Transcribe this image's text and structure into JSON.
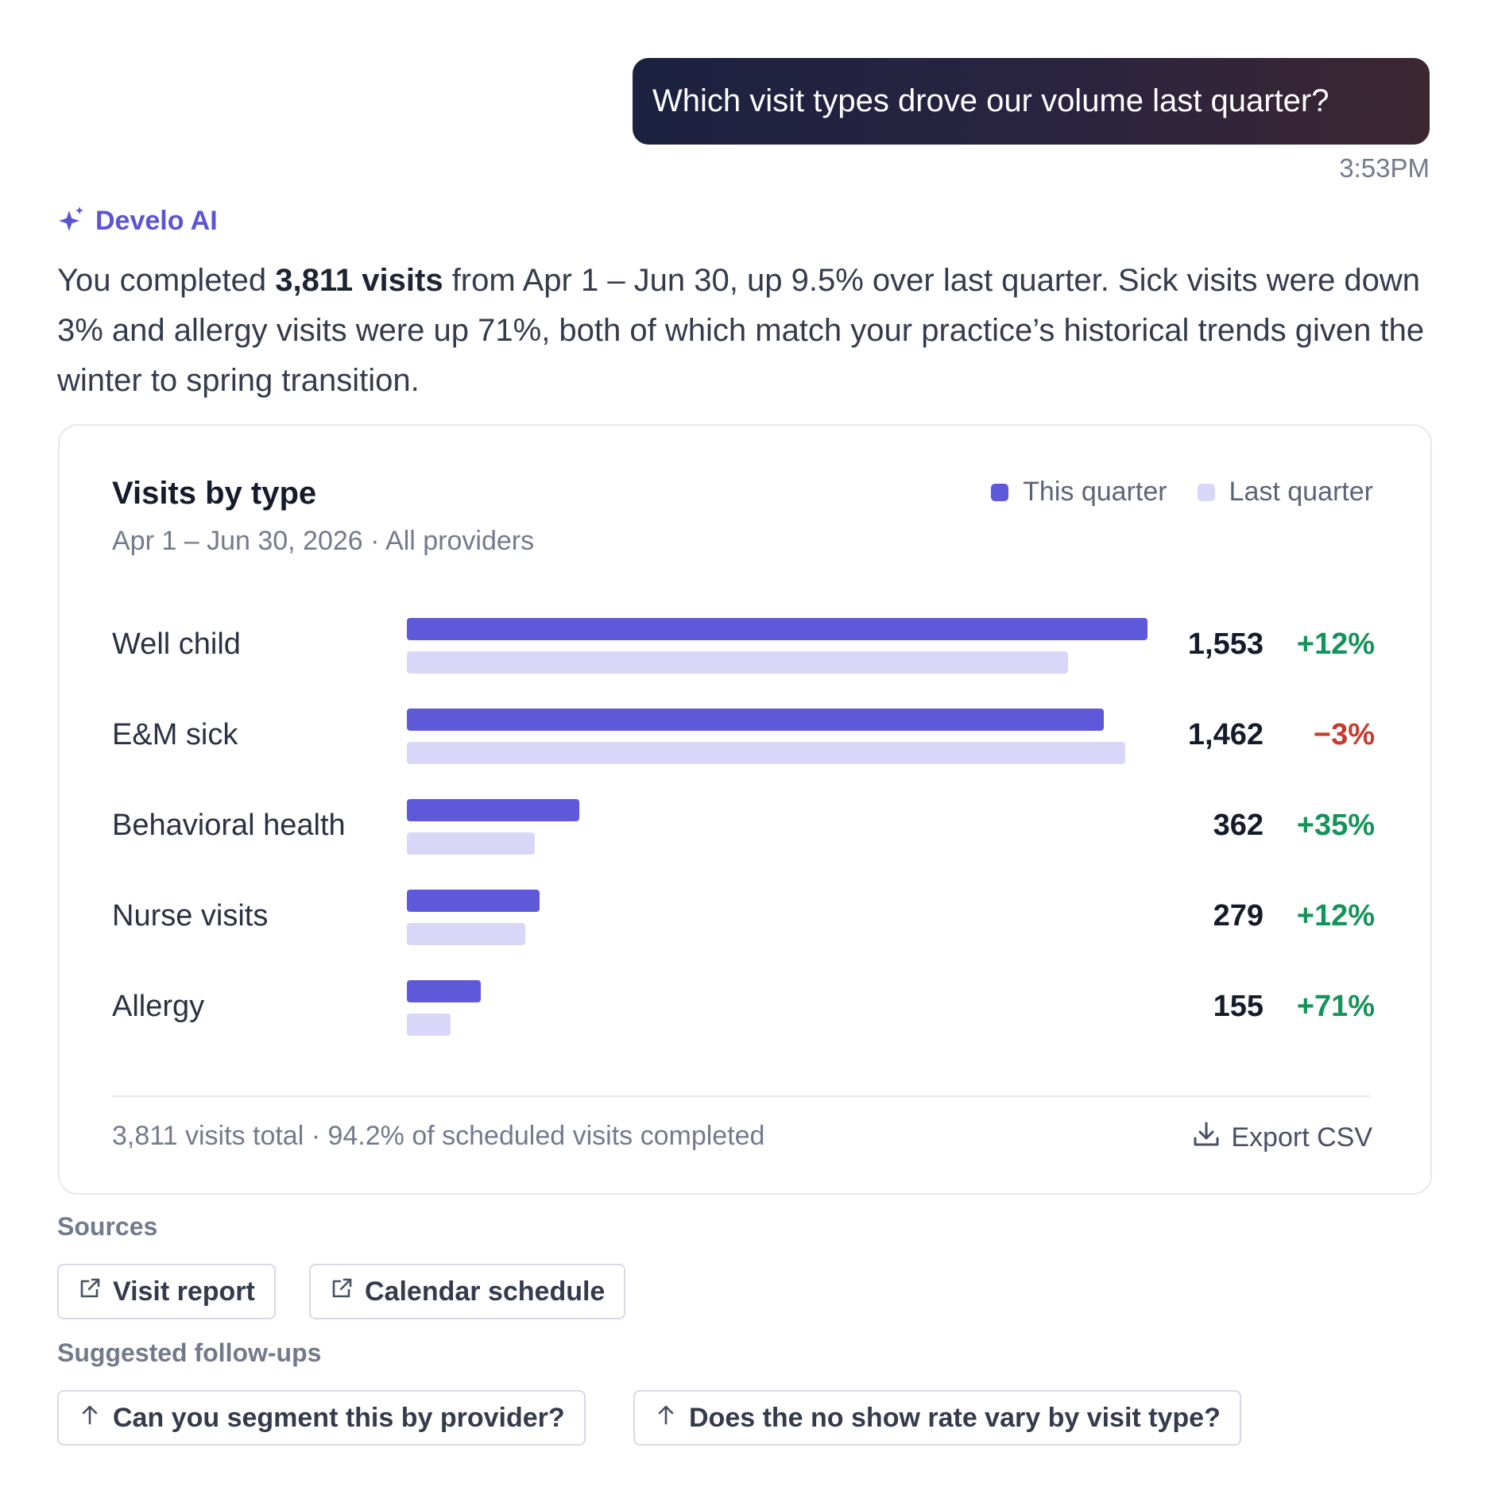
{
  "user_message": {
    "text": "Which visit types drove our volume last quarter?",
    "timestamp": "3:53PM"
  },
  "assistant": {
    "name": "Develo AI",
    "icon": "sparkle-icon",
    "answer": {
      "part1": "You completed ",
      "bold": "3,811 visits",
      "part2": " from Apr 1 – Jun 30, up 9.5% over last quarter. Sick visits were down 3% and allergy visits were up 71%, both of which match your practice’s historical trends given the winter to spring transition."
    }
  },
  "card": {
    "title": "Visits by type",
    "subtitle": "Apr 1 – Jun 30, 2026 · All providers",
    "legend": [
      {
        "label": "This quarter",
        "color": "#5e59d9"
      },
      {
        "label": "Last quarter",
        "color": "#d9d7f7"
      }
    ],
    "footer": "3,811 visits total · 94.2% of scheduled visits completed",
    "export_label": "Export CSV",
    "export_icon": "download-icon"
  },
  "chart_data": {
    "type": "bar",
    "orientation": "horizontal",
    "categories": [
      "Well child",
      "E&M sick",
      "Behavioral health",
      "Nurse visits",
      "Allergy"
    ],
    "series": [
      {
        "name": "This quarter",
        "values": [
          1553,
          1462,
          362,
          279,
          155
        ],
        "color": "#5e59d9"
      },
      {
        "name": "Last quarter",
        "values": [
          1387,
          1507,
          268,
          249,
          91
        ],
        "color": "#d9d7f7"
      }
    ],
    "value_labels": [
      "1,553",
      "1,462",
      "362",
      "279",
      "155"
    ],
    "change_labels": [
      "+12%",
      "−3%",
      "+35%",
      "+12%",
      "+71%"
    ],
    "change_positive": [
      true,
      false,
      true,
      true,
      true
    ],
    "colors": {
      "positive": "#16935a",
      "negative": "#c63b2e"
    },
    "xlim": [
      0,
      1553
    ],
    "grid": false,
    "legend_position": "top-right"
  },
  "sources": {
    "label": "Sources",
    "items": [
      {
        "label": "Visit report",
        "icon": "external-link-icon"
      },
      {
        "label": "Calendar schedule",
        "icon": "external-link-icon"
      }
    ]
  },
  "followups": {
    "label": "Suggested follow-ups",
    "items": [
      {
        "label": "Can you segment this by provider?",
        "icon": "arrow-up-icon"
      },
      {
        "label": "Does the no show rate vary by visit type?",
        "icon": "arrow-up-icon"
      }
    ]
  }
}
